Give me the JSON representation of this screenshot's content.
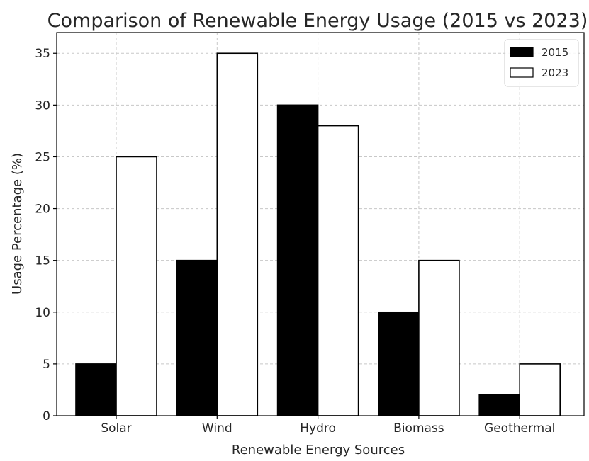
{
  "chart_data": {
    "type": "bar",
    "title": "Comparison of Renewable Energy Usage (2015 vs 2023)",
    "xlabel": "Renewable Energy Sources",
    "ylabel": "Usage Percentage (%)",
    "categories": [
      "Solar",
      "Wind",
      "Hydro",
      "Biomass",
      "Geothermal"
    ],
    "series": [
      {
        "name": "2015",
        "values": [
          5,
          15,
          30,
          10,
          2
        ],
        "color": "#000000"
      },
      {
        "name": "2023",
        "values": [
          25,
          35,
          28,
          15,
          5
        ],
        "color": "#ffffff"
      }
    ],
    "ylim": [
      0,
      37
    ],
    "yticks": [
      0,
      5,
      10,
      15,
      20,
      25,
      30,
      35
    ],
    "grid": true,
    "legend_position": "top-right"
  }
}
